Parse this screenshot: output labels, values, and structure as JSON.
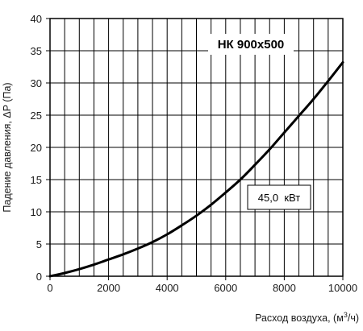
{
  "chart_data": {
    "type": "line",
    "title": "НК 900х500",
    "xlabel_text": "Расход воздуха, (м",
    "xlabel_sup": "3",
    "xlabel_tail": "/ч)",
    "ylabel": "Падение давления, ΔP (Па)",
    "xlim": [
      0,
      10000
    ],
    "ylim": [
      0,
      40
    ],
    "x_ticks": [
      "0",
      "2000",
      "4000",
      "6000",
      "8000",
      "10000"
    ],
    "y_ticks": [
      "0",
      "5",
      "10",
      "15",
      "20",
      "25",
      "30",
      "35",
      "40"
    ],
    "grid": true,
    "annotation": "45,0  кВт",
    "series": [
      {
        "x": [
          0,
          500,
          1000,
          1500,
          2000,
          2500,
          3000,
          3500,
          4000,
          4500,
          5000,
          5500,
          6000,
          6500,
          7000,
          7500,
          8000,
          8500,
          9000,
          9500,
          10000
        ],
        "y": [
          0,
          0.5,
          1.1,
          1.8,
          2.6,
          3.4,
          4.3,
          5.3,
          6.5,
          7.9,
          9.4,
          11.1,
          13.0,
          15.0,
          17.3,
          19.7,
          22.3,
          24.9,
          27.5,
          30.3,
          33.2
        ]
      }
    ]
  }
}
